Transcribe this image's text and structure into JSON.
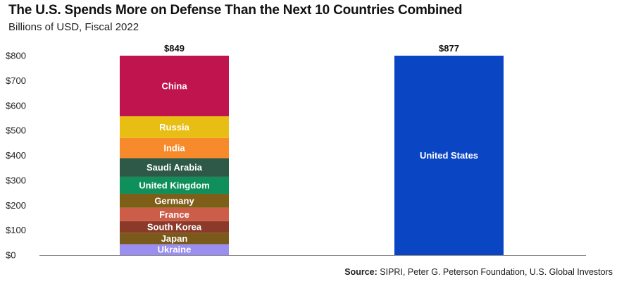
{
  "header": {
    "title": "The U.S. Spends More on Defense Than the Next 10 Countries Combined",
    "subtitle": "Billions of USD, Fiscal 2022"
  },
  "footer": {
    "source_label": "Source:",
    "source_text": "SIPRI, Peter G. Peterson Foundation, U.S. Global Investors"
  },
  "chart_data": {
    "type": "bar",
    "stacked": true,
    "title": "The U.S. Spends More on Defense Than the Next 10 Countries Combined",
    "subtitle": "Billions of USD, Fiscal 2022",
    "ylim": [
      0,
      800
    ],
    "yticks": [
      0,
      100,
      200,
      300,
      400,
      500,
      600,
      700,
      800
    ],
    "ytick_labels": [
      "$0",
      "$100",
      "$200",
      "$300",
      "$400",
      "$500",
      "$600",
      "$700",
      "$800"
    ],
    "grid": false,
    "bars": [
      {
        "total_label": "$849",
        "segments": [
          {
            "name": "Ukraine",
            "value": 44,
            "color": "#9a8ef0"
          },
          {
            "name": "Japan",
            "value": 46,
            "color": "#7a5a1a"
          },
          {
            "name": "South Korea",
            "value": 46,
            "color": "#8b3a2a"
          },
          {
            "name": "France",
            "value": 54,
            "color": "#cc5e49"
          },
          {
            "name": "Germany",
            "value": 56,
            "color": "#7f5e17"
          },
          {
            "name": "United Kingdom",
            "value": 68,
            "color": "#0f8f5a"
          },
          {
            "name": "Saudi Arabia",
            "value": 75,
            "color": "#2e5948"
          },
          {
            "name": "India",
            "value": 81,
            "color": "#f78a2b"
          },
          {
            "name": "Russia",
            "value": 87,
            "color": "#e8be14"
          },
          {
            "name": "China",
            "value": 292,
            "color": "#c0144e"
          }
        ]
      },
      {
        "total_label": "$877",
        "segments": [
          {
            "name": "United States",
            "value": 877,
            "color": "#0a45c4"
          }
        ]
      }
    ]
  }
}
